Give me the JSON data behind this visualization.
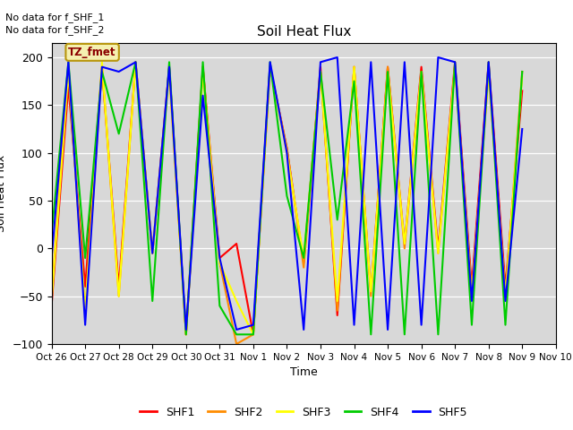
{
  "title": "Soil Heat Flux",
  "ylabel": "Soil Heat Flux",
  "xlabel": "Time",
  "ylim": [
    -100,
    215
  ],
  "xlim": [
    0,
    15
  ],
  "bg_color": "#d8d8d8",
  "text_annotations": [
    "No data for f_SHF_1",
    "No data for f_SHF_2"
  ],
  "box_label": "TZ_fmet",
  "series": {
    "SHF1": {
      "color": "#ff0000",
      "x": [
        0,
        0.5,
        1,
        1.5,
        2,
        2.5,
        3,
        3.5,
        4,
        4.5,
        5,
        5.5,
        6,
        6.5,
        7,
        7.5,
        8,
        8.5,
        9,
        9.5,
        10,
        10.5,
        11,
        11.5,
        12,
        12.5,
        13,
        13.5,
        14
      ],
      "y": [
        -60,
        170,
        -40,
        190,
        -40,
        195,
        -5,
        190,
        -90,
        190,
        -10,
        5,
        -90,
        190,
        105,
        -15,
        190,
        -70,
        190,
        -45,
        190,
        5,
        190,
        0,
        195,
        -40,
        195,
        -40,
        165
      ]
    },
    "SHF2": {
      "color": "#ff8c00",
      "x": [
        0,
        0.5,
        1,
        1.5,
        2,
        2.5,
        3,
        3.5,
        4,
        4.5,
        5,
        5.5,
        6,
        6.5,
        7,
        7.5,
        8,
        8.5,
        9,
        9.5,
        10,
        10.5,
        11,
        11.5,
        12,
        12.5,
        13,
        13.5,
        14
      ],
      "y": [
        -50,
        190,
        -70,
        190,
        -50,
        195,
        -5,
        185,
        -90,
        190,
        -15,
        -100,
        -90,
        190,
        105,
        -20,
        185,
        -65,
        190,
        -50,
        190,
        0,
        185,
        -5,
        190,
        -50,
        185,
        -50,
        185
      ]
    },
    "SHF3": {
      "color": "#ffff00",
      "x": [
        0,
        0.5,
        1,
        1.5,
        2,
        2.5,
        3,
        3.5,
        4,
        4.5,
        5,
        5.5,
        6,
        6.5,
        7,
        7.5,
        8,
        8.5,
        9,
        9.5,
        10,
        10.5,
        11,
        11.5,
        12,
        12.5,
        13,
        13.5,
        14
      ],
      "y": [
        -55,
        185,
        -65,
        195,
        -50,
        195,
        -5,
        185,
        -90,
        185,
        -15,
        -55,
        -90,
        190,
        100,
        -10,
        185,
        -55,
        190,
        -45,
        185,
        5,
        185,
        -5,
        190,
        -50,
        185,
        -50,
        180
      ]
    },
    "SHF4": {
      "color": "#00cc00",
      "x": [
        0,
        0.5,
        1,
        1.5,
        2,
        2.5,
        3,
        3.5,
        4,
        4.5,
        5,
        5.5,
        6,
        6.5,
        7,
        7.5,
        8,
        8.5,
        9,
        9.5,
        10,
        10.5,
        11,
        11.5,
        12,
        12.5,
        13,
        13.5,
        14
      ],
      "y": [
        15,
        195,
        -10,
        185,
        120,
        195,
        -55,
        195,
        -90,
        195,
        -60,
        -90,
        -90,
        195,
        55,
        -10,
        185,
        30,
        175,
        -90,
        185,
        -90,
        185,
        -90,
        195,
        -80,
        195,
        -80,
        185
      ]
    },
    "SHF5": {
      "color": "#0000ff",
      "x": [
        0,
        0.5,
        1,
        1.5,
        2,
        2.5,
        3,
        3.5,
        4,
        4.5,
        5,
        5.5,
        6,
        6.5,
        7,
        7.5,
        8,
        8.5,
        9,
        9.5,
        10,
        10.5,
        11,
        11.5,
        12,
        12.5,
        13,
        13.5,
        14
      ],
      "y": [
        -10,
        195,
        -80,
        190,
        185,
        195,
        -5,
        190,
        -85,
        160,
        -10,
        -85,
        -80,
        195,
        100,
        -85,
        195,
        200,
        -80,
        195,
        -85,
        195,
        -80,
        200,
        195,
        -55,
        195,
        -55,
        125
      ]
    }
  },
  "xticks": [
    0,
    1,
    2,
    3,
    4,
    5,
    6,
    7,
    8,
    9,
    10,
    11,
    12,
    13,
    14,
    15
  ],
  "xticklabels": [
    "Oct 26",
    "Oct 27",
    "Oct 28",
    "Oct 29",
    "Oct 30",
    "Oct 31",
    "Nov 1",
    "Nov 2",
    "Nov 3",
    "Nov 4",
    "Nov 5",
    "Nov 6",
    "Nov 7",
    "Nov 8",
    "Nov 9",
    "Nov 10"
  ],
  "yticks": [
    -100,
    -50,
    0,
    50,
    100,
    150,
    200
  ],
  "legend": [
    {
      "label": "SHF1",
      "color": "#ff0000"
    },
    {
      "label": "SHF2",
      "color": "#ff8c00"
    },
    {
      "label": "SHF3",
      "color": "#ffff00"
    },
    {
      "label": "SHF4",
      "color": "#00cc00"
    },
    {
      "label": "SHF5",
      "color": "#0000ff"
    }
  ],
  "figsize": [
    6.4,
    4.8
  ],
  "dpi": 100
}
